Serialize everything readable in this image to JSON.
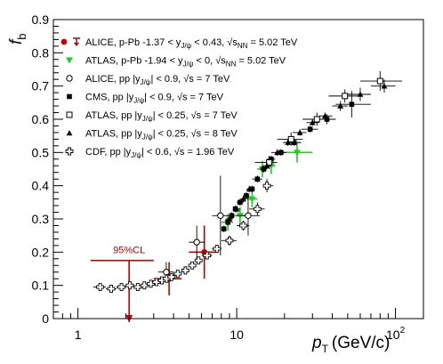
{
  "chart_data": {
    "type": "scatter",
    "xlabel_main": "p",
    "xlabel_sub": "T",
    "xlabel_unit": "(GeV/c)",
    "ylabel_main": "f",
    "ylabel_sub": "b",
    "xscale": "log",
    "xlim": [
      0.7,
      150
    ],
    "ylim": [
      0,
      0.9
    ],
    "xticks": [
      {
        "value": 1,
        "label": "1"
      },
      {
        "value": 10,
        "label": "10"
      },
      {
        "value": 100,
        "label": "10",
        "sup": "2"
      }
    ],
    "yticks": [
      {
        "value": 0,
        "label": "0"
      },
      {
        "value": 0.1,
        "label": "0.1"
      },
      {
        "value": 0.2,
        "label": "0.2"
      },
      {
        "value": 0.3,
        "label": "0.3"
      },
      {
        "value": 0.4,
        "label": "0.4"
      },
      {
        "value": 0.5,
        "label": "0.5"
      },
      {
        "value": 0.6,
        "label": "0.6"
      },
      {
        "value": 0.7,
        "label": "0.7"
      },
      {
        "value": 0.8,
        "label": "0.8"
      },
      {
        "value": 0.9,
        "label": "0.9"
      }
    ],
    "annotation": {
      "text": "95%CL",
      "x": 2.1,
      "y": 0.175
    },
    "legend_placement": "top-left",
    "legend": [
      {
        "marker": "alice-ppb",
        "color": "#c00000",
        "parts": [
          "ALICE, p-Pb  -1.37 < y",
          "J/ψ",
          " < 0.43, √s",
          "NN",
          " = 5.02 TeV"
        ]
      },
      {
        "marker": "atlas-ppb",
        "color": "#22cc22",
        "parts": [
          "ATLAS, p-Pb  -1.94 < y",
          "J/ψ",
          " < 0, √s",
          "NN",
          " = 5.02 TeV"
        ]
      },
      {
        "marker": "open-circle",
        "color": "#000000",
        "parts": [
          "ALICE, pp  |y",
          "J/ψ",
          "| < 0.9, √s = 7 TeV"
        ]
      },
      {
        "marker": "filled-square",
        "color": "#000000",
        "parts": [
          "CMS, pp  |y",
          "J/ψ",
          "| < 0.9, √s = 7 TeV"
        ]
      },
      {
        "marker": "open-square",
        "color": "#000000",
        "parts": [
          "ATLAS, pp  |y",
          "J/ψ",
          "| < 0.25, √s = 7 TeV"
        ]
      },
      {
        "marker": "filled-triangle",
        "color": "#000000",
        "parts": [
          "ATLAS, pp  |y",
          "J/ψ",
          "| < 0.25, √s = 8 TeV"
        ]
      },
      {
        "marker": "open-cross",
        "color": "#000000",
        "parts": [
          "CDF, pp  |y",
          "J/ψ",
          "| < 0.6, √s = 1.96 TeV"
        ]
      }
    ],
    "series": [
      {
        "name": "ALICE, p-Pb -1.37 < y < 0.43",
        "marker": "alice-ppb",
        "color": "#c00000",
        "points": [
          {
            "x": 3.75,
            "y": 0.12,
            "xlo": 3.0,
            "xhi": 4.5,
            "yerr": 0.05
          },
          {
            "x": 6.25,
            "y": 0.2,
            "xlo": 5.0,
            "xhi": 7.5,
            "yerr": 0.08
          }
        ],
        "limit": {
          "x": 2.1,
          "y": 0.175,
          "xlo": 1.2,
          "xhi": 3.0
        }
      },
      {
        "name": "ATLAS, p-Pb -1.94 < y < 0",
        "marker": "atlas-ppb",
        "color": "#22cc22",
        "points": [
          {
            "x": 8.8,
            "y": 0.29,
            "xlo": 8.0,
            "xhi": 9.5,
            "yerr": 0.025
          },
          {
            "x": 10.5,
            "y": 0.31,
            "xlo": 9.5,
            "xhi": 11.5,
            "yerr": 0.025
          },
          {
            "x": 12.5,
            "y": 0.36,
            "xlo": 11.5,
            "xhi": 13.5,
            "yerr": 0.025
          },
          {
            "x": 14.5,
            "y": 0.45,
            "xlo": 13.5,
            "xhi": 15.5,
            "yerr": 0.025
          },
          {
            "x": 16.5,
            "y": 0.46,
            "xlo": 15.5,
            "xhi": 17.5,
            "yerr": 0.025
          },
          {
            "x": 24.0,
            "y": 0.5,
            "xlo": 18.0,
            "xhi": 30.0,
            "yerr": 0.03
          }
        ]
      },
      {
        "name": "ALICE, pp |y| < 0.9",
        "marker": "open-circle",
        "color": "#000000",
        "points": [
          {
            "x": 3.6,
            "y": 0.14,
            "xlo": 3.2,
            "xhi": 4.0,
            "yerr": 0.03
          },
          {
            "x": 5.6,
            "y": 0.23,
            "xlo": 5.0,
            "xhi": 6.3,
            "yerr": 0.05
          },
          {
            "x": 7.9,
            "y": 0.31,
            "xlo": 7.0,
            "xhi": 9.0,
            "yerr": 0.12
          },
          {
            "x": 11.8,
            "y": 0.31,
            "xlo": 10.0,
            "xhi": 14.0,
            "yerr": 0.06
          }
        ]
      },
      {
        "name": "CMS, pp |y| < 0.9",
        "marker": "filled-square",
        "color": "#000000",
        "points": [
          {
            "x": 8.3,
            "y": 0.27,
            "xlo": 8.0,
            "xhi": 8.6,
            "yerr": 0.01
          },
          {
            "x": 8.8,
            "y": 0.29,
            "xlo": 8.6,
            "xhi": 9.0,
            "yerr": 0.01
          },
          {
            "x": 9.3,
            "y": 0.31,
            "xlo": 9.0,
            "xhi": 9.6,
            "yerr": 0.01
          },
          {
            "x": 9.8,
            "y": 0.33,
            "xlo": 9.6,
            "xhi": 10.0,
            "yerr": 0.01
          },
          {
            "x": 10.5,
            "y": 0.35,
            "xlo": 10.0,
            "xhi": 11.0,
            "yerr": 0.01
          },
          {
            "x": 11.5,
            "y": 0.37,
            "xlo": 11.0,
            "xhi": 12.0,
            "yerr": 0.01
          },
          {
            "x": 12.5,
            "y": 0.39,
            "xlo": 12.0,
            "xhi": 13.0,
            "yerr": 0.01
          },
          {
            "x": 13.5,
            "y": 0.42,
            "xlo": 13.0,
            "xhi": 14.0,
            "yerr": 0.01
          },
          {
            "x": 14.8,
            "y": 0.45,
            "xlo": 14.0,
            "xhi": 15.5,
            "yerr": 0.01
          },
          {
            "x": 16.5,
            "y": 0.48,
            "xlo": 15.5,
            "xhi": 17.5,
            "yerr": 0.01
          },
          {
            "x": 19.0,
            "y": 0.5,
            "xlo": 17.5,
            "xhi": 20.5,
            "yerr": 0.01
          },
          {
            "x": 23.0,
            "y": 0.53,
            "xlo": 20.5,
            "xhi": 25.5,
            "yerr": 0.01
          },
          {
            "x": 29.0,
            "y": 0.57,
            "xlo": 25.5,
            "xhi": 32.5,
            "yerr": 0.01
          },
          {
            "x": 37.0,
            "y": 0.6,
            "xlo": 32.5,
            "xhi": 42.0,
            "yerr": 0.015
          },
          {
            "x": 53.0,
            "y": 0.645,
            "xlo": 42.0,
            "xhi": 70.0,
            "yerr": 0.04
          }
        ]
      },
      {
        "name": "ATLAS, pp |y| < 0.25, 7 TeV",
        "marker": "open-square",
        "color": "#000000",
        "points": [
          {
            "x": 16.0,
            "y": 0.47,
            "xlo": 13.0,
            "xhi": 18.0,
            "yerr": 0.02
          },
          {
            "x": 22.0,
            "y": 0.54,
            "xlo": 18.0,
            "xhi": 26.0,
            "yerr": 0.02
          },
          {
            "x": 32.0,
            "y": 0.6,
            "xlo": 26.0,
            "xhi": 38.0,
            "yerr": 0.02
          },
          {
            "x": 48.0,
            "y": 0.67,
            "xlo": 38.0,
            "xhi": 60.0,
            "yerr": 0.02
          },
          {
            "x": 80.0,
            "y": 0.715,
            "xlo": 60.0,
            "xhi": 110.0,
            "yerr": 0.03
          }
        ]
      },
      {
        "name": "ATLAS, pp |y| < 0.25, 8 TeV",
        "marker": "filled-triangle",
        "color": "#000000",
        "points": [
          {
            "x": 9.0,
            "y": 0.3,
            "xlo": 8.5,
            "xhi": 9.5,
            "yerr": 0.01
          },
          {
            "x": 10.0,
            "y": 0.33,
            "xlo": 9.5,
            "xhi": 10.5,
            "yerr": 0.01
          },
          {
            "x": 11.0,
            "y": 0.36,
            "xlo": 10.5,
            "xhi": 11.5,
            "yerr": 0.01
          },
          {
            "x": 12.0,
            "y": 0.39,
            "xlo": 11.5,
            "xhi": 12.5,
            "yerr": 0.01
          },
          {
            "x": 13.5,
            "y": 0.42,
            "xlo": 12.5,
            "xhi": 14.5,
            "yerr": 0.01
          },
          {
            "x": 15.5,
            "y": 0.46,
            "xlo": 14.5,
            "xhi": 16.5,
            "yerr": 0.01
          },
          {
            "x": 18.0,
            "y": 0.5,
            "xlo": 16.5,
            "xhi": 19.5,
            "yerr": 0.01
          },
          {
            "x": 21.0,
            "y": 0.53,
            "xlo": 19.5,
            "xhi": 22.5,
            "yerr": 0.01
          },
          {
            "x": 25.0,
            "y": 0.56,
            "xlo": 22.5,
            "xhi": 27.5,
            "yerr": 0.01
          },
          {
            "x": 30.0,
            "y": 0.59,
            "xlo": 27.5,
            "xhi": 33.0,
            "yerr": 0.01
          },
          {
            "x": 36.0,
            "y": 0.61,
            "xlo": 33.0,
            "xhi": 40.0,
            "yerr": 0.01
          },
          {
            "x": 45.0,
            "y": 0.64,
            "xlo": 40.0,
            "xhi": 50.0,
            "yerr": 0.015
          },
          {
            "x": 60.0,
            "y": 0.675,
            "xlo": 50.0,
            "xhi": 70.0,
            "yerr": 0.02
          },
          {
            "x": 85.0,
            "y": 0.7,
            "xlo": 70.0,
            "xhi": 100.0,
            "yerr": 0.02
          }
        ]
      },
      {
        "name": "CDF, pp |y| < 0.6",
        "marker": "open-cross",
        "color": "#000000",
        "points": [
          {
            "x": 1.38,
            "y": 0.095,
            "xlo": 1.25,
            "xhi": 1.5,
            "yerr": 0.01
          },
          {
            "x": 1.62,
            "y": 0.09,
            "xlo": 1.5,
            "xhi": 1.75,
            "yerr": 0.01
          },
          {
            "x": 1.88,
            "y": 0.095,
            "xlo": 1.75,
            "xhi": 2.0,
            "yerr": 0.01
          },
          {
            "x": 2.12,
            "y": 0.1,
            "xlo": 2.0,
            "xhi": 2.25,
            "yerr": 0.01
          },
          {
            "x": 2.38,
            "y": 0.095,
            "xlo": 2.25,
            "xhi": 2.5,
            "yerr": 0.01
          },
          {
            "x": 2.62,
            "y": 0.1,
            "xlo": 2.5,
            "xhi": 2.75,
            "yerr": 0.01
          },
          {
            "x": 2.88,
            "y": 0.105,
            "xlo": 2.75,
            "xhi": 3.0,
            "yerr": 0.01
          },
          {
            "x": 3.12,
            "y": 0.11,
            "xlo": 3.0,
            "xhi": 3.25,
            "yerr": 0.01
          },
          {
            "x": 3.38,
            "y": 0.115,
            "xlo": 3.25,
            "xhi": 3.5,
            "yerr": 0.01
          },
          {
            "x": 3.62,
            "y": 0.12,
            "xlo": 3.5,
            "xhi": 3.75,
            "yerr": 0.01
          },
          {
            "x": 3.88,
            "y": 0.125,
            "xlo": 3.75,
            "xhi": 4.0,
            "yerr": 0.01
          },
          {
            "x": 4.25,
            "y": 0.135,
            "xlo": 4.0,
            "xhi": 4.5,
            "yerr": 0.01
          },
          {
            "x": 4.75,
            "y": 0.145,
            "xlo": 4.5,
            "xhi": 5.0,
            "yerr": 0.01
          },
          {
            "x": 5.25,
            "y": 0.16,
            "xlo": 5.0,
            "xhi": 5.5,
            "yerr": 0.01
          },
          {
            "x": 5.75,
            "y": 0.175,
            "xlo": 5.5,
            "xhi": 6.0,
            "yerr": 0.01
          },
          {
            "x": 6.5,
            "y": 0.19,
            "xlo": 6.0,
            "xhi": 7.0,
            "yerr": 0.01
          },
          {
            "x": 7.5,
            "y": 0.21,
            "xlo": 7.0,
            "xhi": 8.0,
            "yerr": 0.01
          },
          {
            "x": 9.0,
            "y": 0.235,
            "xlo": 8.0,
            "xhi": 10.0,
            "yerr": 0.015
          },
          {
            "x": 11.0,
            "y": 0.28,
            "xlo": 10.0,
            "xhi": 12.0,
            "yerr": 0.015
          },
          {
            "x": 13.5,
            "y": 0.33,
            "xlo": 12.0,
            "xhi": 15.0,
            "yerr": 0.02
          },
          {
            "x": 15.5,
            "y": 0.4,
            "xlo": 15.0,
            "xhi": 17.0,
            "yerr": 0.02
          }
        ]
      }
    ]
  }
}
